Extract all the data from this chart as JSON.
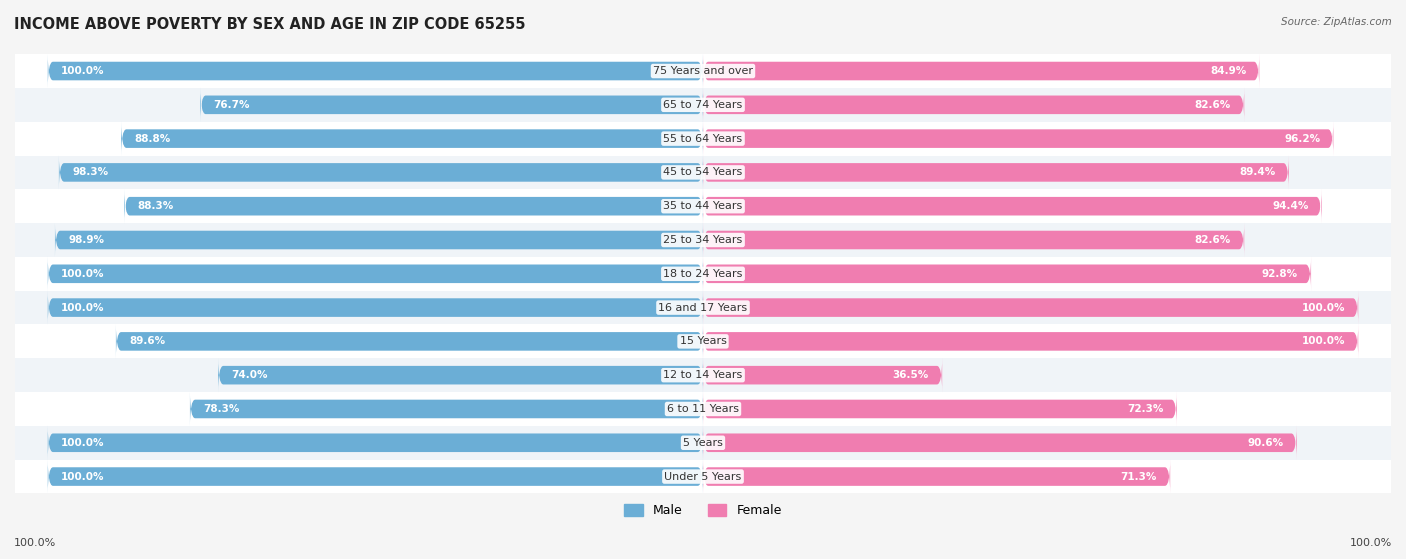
{
  "title": "INCOME ABOVE POVERTY BY SEX AND AGE IN ZIP CODE 65255",
  "source": "Source: ZipAtlas.com",
  "categories": [
    "Under 5 Years",
    "5 Years",
    "6 to 11 Years",
    "12 to 14 Years",
    "15 Years",
    "16 and 17 Years",
    "18 to 24 Years",
    "25 to 34 Years",
    "35 to 44 Years",
    "45 to 54 Years",
    "55 to 64 Years",
    "65 to 74 Years",
    "75 Years and over"
  ],
  "male_values": [
    100.0,
    100.0,
    78.3,
    74.0,
    89.6,
    100.0,
    100.0,
    98.9,
    88.3,
    98.3,
    88.8,
    76.7,
    100.0
  ],
  "female_values": [
    71.3,
    90.6,
    72.3,
    36.5,
    100.0,
    100.0,
    92.8,
    82.6,
    94.4,
    89.4,
    96.2,
    82.6,
    84.9
  ],
  "male_color": "#6baed6",
  "female_color": "#f07db0",
  "male_label": "Male",
  "female_label": "Female",
  "bar_height": 0.55,
  "title_fontsize": 10.5,
  "label_fontsize": 8,
  "value_fontsize": 7.5,
  "source_fontsize": 7.5,
  "row_bg_odd": "#f0f4f8",
  "row_bg_even": "#ffffff"
}
